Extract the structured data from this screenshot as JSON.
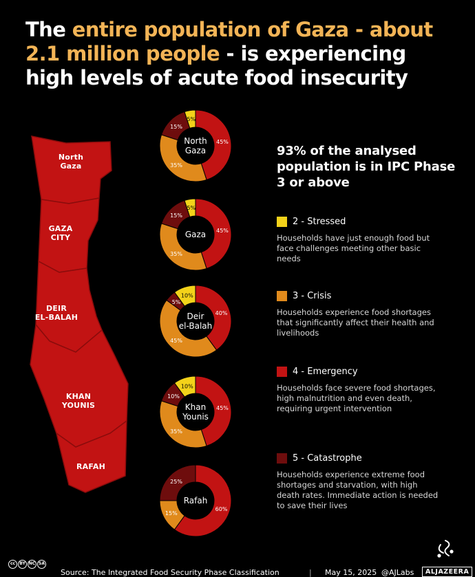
{
  "title": {
    "part1": "The ",
    "highlight1": "entire population of Gaza - about 2.1 million people",
    "part2": " - is experiencing high levels of acute food insecurity"
  },
  "colors": {
    "stressed": "#f3d21a",
    "crisis": "#e08a1c",
    "emergency": "#c21313",
    "catastrophe": "#6e0d0d",
    "map_fill": "#c21313",
    "highlight": "#f3b456"
  },
  "map_labels": [
    "North\nGaza",
    "GAZA\nCITY",
    "DEIR\nEL-BALAH",
    "KHAN\nYOUNIS",
    "RAFAH"
  ],
  "chart_data": {
    "type": "pie",
    "subtype": "donut",
    "unit": "%",
    "series_order": [
      "2 - Stressed",
      "3 - Crisis",
      "4 - Emergency",
      "5 - Catastrophe"
    ],
    "charts": [
      {
        "name": "North\nGaza",
        "values": [
          5,
          35,
          45,
          15
        ],
        "labels": [
          "5%",
          "35%",
          "45%",
          "15%"
        ]
      },
      {
        "name": "Gaza",
        "values": [
          5,
          35,
          45,
          15
        ],
        "labels": [
          "5%",
          "35%",
          "45%",
          "15%"
        ]
      },
      {
        "name": "Deir\nel-Balah",
        "values": [
          10,
          45,
          40,
          5
        ],
        "labels": [
          "10%",
          "45%",
          "40%",
          "5%"
        ]
      },
      {
        "name": "Khan\nYounis",
        "values": [
          10,
          35,
          45,
          10
        ],
        "labels": [
          "10%",
          "35%",
          "45%",
          "10%"
        ]
      },
      {
        "name": "Rafah",
        "values": [
          0,
          15,
          60,
          25
        ],
        "labels": [
          "",
          "15%",
          "60%",
          "25%"
        ]
      }
    ]
  },
  "summary": "93% of the analysed population is in IPC Phase 3 or above",
  "phases": [
    {
      "label": "2 - Stressed",
      "color": "#f3d21a",
      "desc": "Households have just enough food but face challenges meeting other basic needs"
    },
    {
      "label": "3 - Crisis",
      "color": "#e08a1c",
      "desc": "Households experience food shortages that significantly affect their health and livelihoods"
    },
    {
      "label": "4 - Emergency",
      "color": "#c21313",
      "desc": "Households face severe food shortages, high malnutrition and even death, requiring urgent intervention"
    },
    {
      "label": "5 - Catastrophe",
      "color": "#6e0d0d",
      "desc": "Households experience extreme food shortages and starvation, with high death rates. Immediate action is needed to save their lives"
    }
  ],
  "footer": {
    "license": [
      "cc",
      "BY",
      "NC",
      "SA"
    ],
    "source": "Source:  The Integrated Food Security Phase Classification",
    "separator": "|",
    "date": "May 15, 2025",
    "credit": "@AJLabs",
    "brand": "ALJAZEERA"
  }
}
